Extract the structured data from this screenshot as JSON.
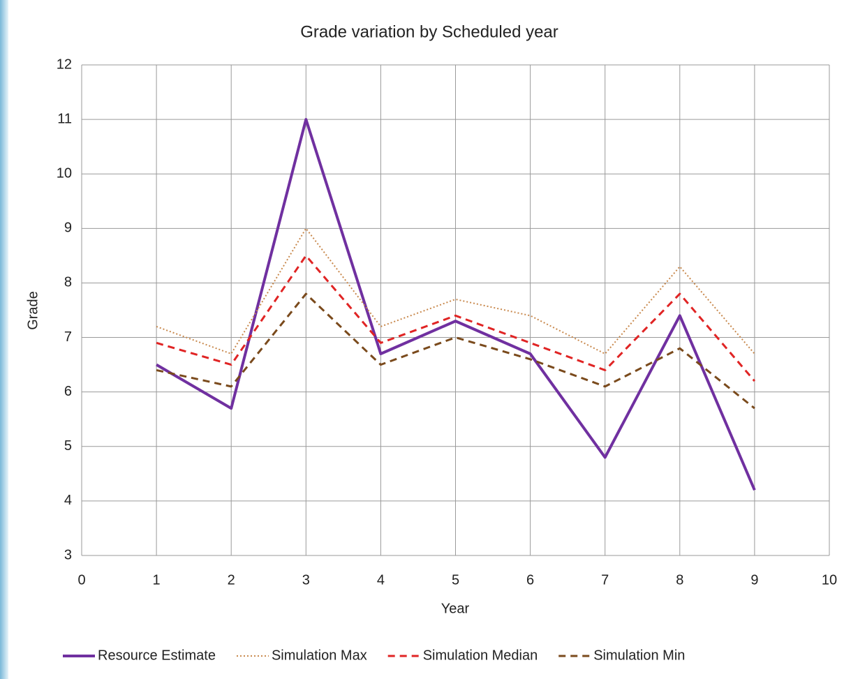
{
  "chart_data": {
    "type": "line",
    "title": "Grade variation by Scheduled year",
    "x_label": "Year",
    "y_label": "Grade",
    "x": [
      1,
      2,
      3,
      4,
      5,
      6,
      7,
      8,
      9
    ],
    "series": [
      {
        "name": "Resource Estimate",
        "color": "#7030a0",
        "dash": "solid",
        "values": [
          6.5,
          5.7,
          11,
          6.7,
          7.3,
          6.7,
          4.8,
          7.4,
          4.2
        ]
      },
      {
        "name": "Simulation Max",
        "color": "#c8884c",
        "dash": "dotted",
        "values": [
          7.2,
          6.7,
          9.0,
          7.2,
          7.7,
          7.4,
          6.7,
          8.3,
          6.7
        ]
      },
      {
        "name": "Simulation Median",
        "color": "#e02424",
        "dash": "dashed",
        "values": [
          6.9,
          6.5,
          8.5,
          6.9,
          7.4,
          6.9,
          6.4,
          7.8,
          6.2
        ]
      },
      {
        "name": "Simulation Min",
        "color": "#7a4a1c",
        "dash": "dashed",
        "values": [
          6.4,
          6.1,
          7.8,
          6.5,
          7.0,
          6.6,
          6.1,
          6.8,
          5.7
        ]
      }
    ],
    "xlim": [
      0,
      10
    ],
    "xticks": [
      0,
      1,
      2,
      3,
      4,
      5,
      6,
      7,
      8,
      9,
      10
    ],
    "ylim": [
      3,
      12
    ],
    "yticks": [
      3,
      4,
      5,
      6,
      7,
      8,
      9,
      10,
      11,
      12
    ],
    "grid": true,
    "legend": "bottom"
  }
}
